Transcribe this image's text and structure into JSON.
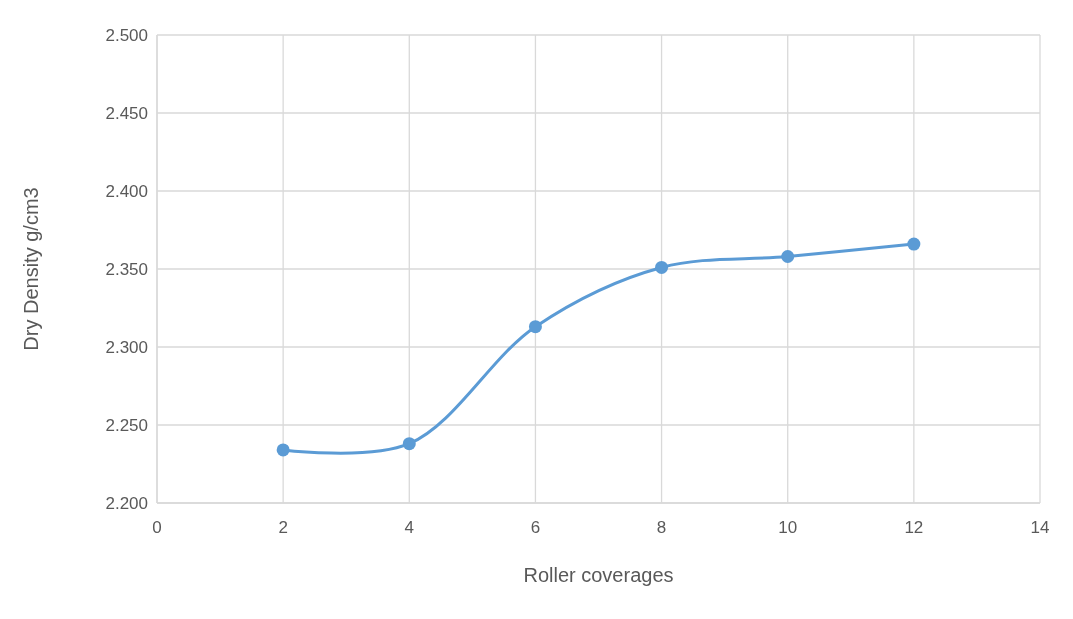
{
  "chart_data": {
    "type": "line",
    "xlabel": "Roller coverages",
    "ylabel": "Dry Density g/cm3",
    "x": [
      2,
      4,
      6,
      8,
      10,
      12
    ],
    "series": [
      {
        "color": "#5b9bd5",
        "values": [
          2.234,
          2.238,
          2.313,
          2.351,
          2.358,
          2.366
        ]
      }
    ],
    "xlim": [
      0,
      14
    ],
    "xticks": [
      0,
      2,
      4,
      6,
      8,
      10,
      12,
      14
    ],
    "ylim": [
      2.2,
      2.5
    ],
    "yticks": [
      {
        "value": 2.2,
        "label": "2.200"
      },
      {
        "value": 2.25,
        "label": "2.250"
      },
      {
        "value": 2.3,
        "label": "2.300"
      },
      {
        "value": 2.35,
        "label": "2.350"
      },
      {
        "value": 2.4,
        "label": "2.400"
      },
      {
        "value": 2.45,
        "label": "2.450"
      },
      {
        "value": 2.5,
        "label": "2.500"
      }
    ],
    "grid": true,
    "marker": "circle",
    "line_style": "solid"
  }
}
